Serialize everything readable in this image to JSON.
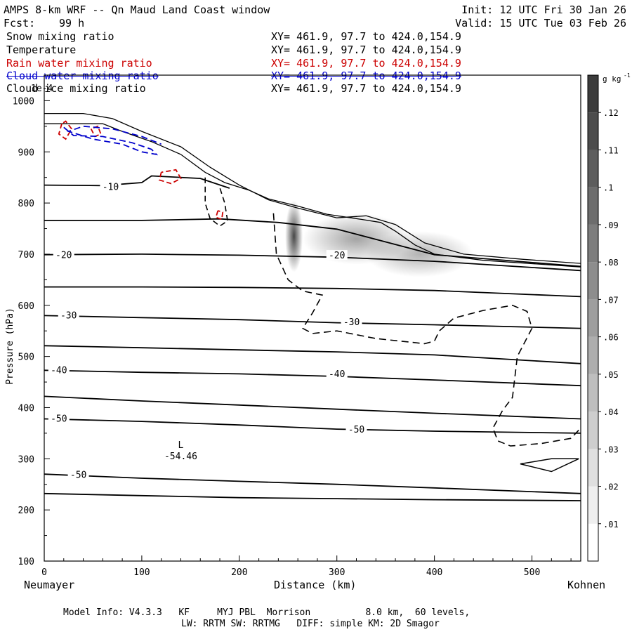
{
  "header": {
    "title": "AMPS 8-km WRF -- Qn Maud Land Coast window",
    "fcst_label": "Fcst:",
    "fcst_value": "99 h",
    "init": "Init: 12 UTC Fri 30 Jan 26",
    "valid": "Valid: 15 UTC Tue 03 Feb 26"
  },
  "fields": [
    {
      "name": "Snow mixing ratio",
      "xy": "XY= 461.9, 97.7 to 424.0,154.9",
      "color": "#000000"
    },
    {
      "name": "Temperature",
      "xy": "XY= 461.9, 97.7 to 424.0,154.9",
      "color": "#000000"
    },
    {
      "name": "Rain water mixing ratio",
      "xy": "XY= 461.9, 97.7 to 424.0,154.9",
      "color": "#cc0000"
    },
    {
      "name": "Cloud water mixing ratio",
      "xy": "XY= 461.9, 97.7 to 424.0,154.9",
      "color": "#0000cc"
    },
    {
      "name": "Cloud ice mixing ratio",
      "xy": "XY= 461.9, 97.7 to 424.0,154.9",
      "color": "#000000"
    }
  ],
  "overlap_text": "1e-4",
  "chart_data": {
    "type": "contour",
    "xlabel": "Distance (km)",
    "ylabel": "Pressure (hPa)",
    "xlim": [
      0,
      550
    ],
    "ylim": [
      1050,
      100
    ],
    "x_ticks": [
      0,
      100,
      200,
      300,
      400,
      500
    ],
    "y_ticks": [
      100,
      200,
      300,
      400,
      500,
      600,
      700,
      800,
      900,
      1000
    ],
    "x_start_label": "Neumayer",
    "x_end_label": "Kohnen",
    "low_marker": {
      "label": "L",
      "value": "-54.46",
      "x": 140,
      "p": 310
    },
    "temperature_labels": [
      {
        "text": "-50",
        "x": 35,
        "p": 268
      },
      {
        "text": "-50",
        "x": 320,
        "p": 357
      },
      {
        "text": "-50",
        "x": 15,
        "p": 378
      },
      {
        "text": "-40",
        "x": 300,
        "p": 465
      },
      {
        "text": "-40",
        "x": 15,
        "p": 473
      },
      {
        "text": "-30",
        "x": 315,
        "p": 567
      },
      {
        "text": "-30",
        "x": 25,
        "p": 580
      },
      {
        "text": "-20",
        "x": 300,
        "p": 697
      },
      {
        "text": "-20",
        "x": 20,
        "p": 698
      },
      {
        "text": "-10",
        "x": 68,
        "p": 831
      }
    ],
    "temperature_isotherms": [
      [
        [
          0,
          232
        ],
        [
          100,
          228
        ],
        [
          200,
          224
        ],
        [
          300,
          222
        ],
        [
          400,
          220
        ],
        [
          550,
          218
        ]
      ],
      [
        [
          0,
          270
        ],
        [
          100,
          262
        ],
        [
          200,
          256
        ],
        [
          300,
          250
        ],
        [
          400,
          243
        ],
        [
          550,
          232
        ]
      ],
      [
        [
          0,
          378
        ],
        [
          100,
          373
        ],
        [
          200,
          366
        ],
        [
          300,
          358
        ],
        [
          400,
          354
        ],
        [
          550,
          350
        ]
      ],
      [
        [
          0,
          422
        ],
        [
          100,
          413
        ],
        [
          200,
          405
        ],
        [
          300,
          397
        ],
        [
          400,
          389
        ],
        [
          550,
          378
        ]
      ],
      [
        [
          0,
          473
        ],
        [
          100,
          469
        ],
        [
          200,
          466
        ],
        [
          300,
          461
        ],
        [
          400,
          454
        ],
        [
          550,
          443
        ]
      ],
      [
        [
          0,
          521
        ],
        [
          100,
          517
        ],
        [
          200,
          513
        ],
        [
          300,
          509
        ],
        [
          400,
          503
        ],
        [
          550,
          486
        ]
      ],
      [
        [
          0,
          580
        ],
        [
          100,
          576
        ],
        [
          200,
          572
        ],
        [
          300,
          566
        ],
        [
          400,
          562
        ],
        [
          550,
          555
        ]
      ],
      [
        [
          0,
          636
        ],
        [
          100,
          636
        ],
        [
          200,
          635
        ],
        [
          300,
          633
        ],
        [
          400,
          629
        ],
        [
          550,
          617
        ]
      ],
      [
        [
          0,
          699
        ],
        [
          100,
          700
        ],
        [
          200,
          698
        ],
        [
          300,
          694
        ],
        [
          400,
          686
        ],
        [
          550,
          668
        ]
      ],
      [
        [
          0,
          766
        ],
        [
          100,
          766
        ],
        [
          180,
          769
        ],
        [
          240,
          762
        ],
        [
          300,
          749
        ],
        [
          400,
          699
        ],
        [
          550,
          676
        ]
      ],
      [
        [
          0,
          835
        ],
        [
          60,
          834
        ],
        [
          100,
          840
        ],
        [
          110,
          853
        ],
        [
          160,
          848
        ],
        [
          190,
          829
        ]
      ]
    ],
    "terrain": [
      [
        0,
        955
      ],
      [
        60,
        955
      ],
      [
        80,
        940
      ],
      [
        110,
        920
      ],
      [
        140,
        895
      ],
      [
        165,
        860
      ],
      [
        185,
        840
      ],
      [
        210,
        825
      ],
      [
        230,
        808
      ],
      [
        260,
        794
      ],
      [
        290,
        778
      ],
      [
        325,
        768
      ],
      [
        345,
        762
      ],
      [
        360,
        745
      ],
      [
        380,
        718
      ],
      [
        400,
        700
      ],
      [
        450,
        688
      ],
      [
        550,
        675
      ]
    ],
    "terrain2": [
      [
        0,
        975
      ],
      [
        40,
        975
      ],
      [
        70,
        965
      ],
      [
        100,
        940
      ],
      [
        140,
        910
      ],
      [
        170,
        870
      ],
      [
        200,
        835
      ],
      [
        230,
        806
      ],
      [
        260,
        790
      ],
      [
        300,
        771
      ],
      [
        330,
        775
      ],
      [
        360,
        758
      ],
      [
        390,
        722
      ],
      [
        430,
        700
      ],
      [
        490,
        690
      ],
      [
        550,
        682
      ]
    ],
    "snow_cells": [
      {
        "x": 256,
        "p": 735,
        "rx": 9,
        "rp": 70,
        "value": 0.12
      },
      {
        "x": 320,
        "p": 730,
        "rx": 55,
        "rp": 50,
        "value": 0.06
      },
      {
        "x": 385,
        "p": 700,
        "rx": 55,
        "rp": 45,
        "value": 0.05
      }
    ],
    "colorbar": {
      "unit": "g kg",
      "unit_exp": "-1",
      "ticks": [
        ".01",
        ".02",
        ".03",
        ".04",
        ".05",
        ".06",
        ".07",
        ".08",
        ".09",
        ".1",
        ".11",
        ".12"
      ]
    }
  },
  "footer": {
    "model_info": "Model Info: V4.3.3   KF     MYJ PBL  Morrison          8.0 km,  60 levels,",
    "physics": "LW: RRTM SW: RRTMG   DIFF: simple KM: 2D Smagor"
  }
}
